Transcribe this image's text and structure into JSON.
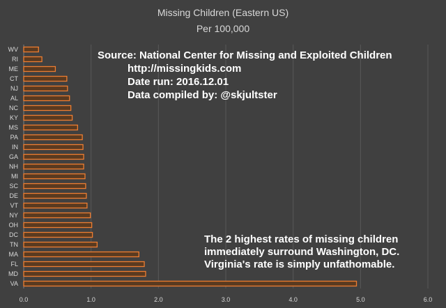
{
  "chart_data": {
    "type": "bar",
    "orientation": "horizontal",
    "title": "Missing Children (Eastern US)",
    "subtitle": "Per 100,000",
    "categories": [
      "WV",
      "RI",
      "ME",
      "CT",
      "NJ",
      "AL",
      "NC",
      "KY",
      "MS",
      "PA",
      "IN",
      "GA",
      "NH",
      "MI",
      "SC",
      "DE",
      "VT",
      "NY",
      "OH",
      "DC",
      "TN",
      "MA",
      "FL",
      "MD",
      "VA"
    ],
    "values": [
      0.22,
      0.27,
      0.47,
      0.64,
      0.65,
      0.68,
      0.7,
      0.72,
      0.8,
      0.87,
      0.88,
      0.89,
      0.89,
      0.91,
      0.92,
      0.93,
      0.94,
      0.99,
      1.01,
      1.02,
      1.09,
      1.71,
      1.79,
      1.81,
      4.94
    ],
    "xlim": [
      0,
      6
    ],
    "xticks": [
      "0.0",
      "1.0",
      "2.0",
      "3.0",
      "4.0",
      "5.0",
      "6.0"
    ],
    "grid": true,
    "bar_fill": "#5a3a20",
    "bar_stroke": "#ed7d31",
    "annotations": {
      "source": [
        "Source: National Center for Missing and Exploited Children",
        "http://missingkids.com",
        "Date run: 2016.12.01",
        "Data compiled by: @skjultster"
      ],
      "note": [
        "The 2 highest rates of missing children",
        "immediately surround Washington, DC.",
        "Virginia's rate is simply unfathomable."
      ]
    }
  },
  "colors": {
    "background": "#404040",
    "grid": "#595959",
    "text": "#d9d9d9",
    "annotation": "#ffffff"
  }
}
